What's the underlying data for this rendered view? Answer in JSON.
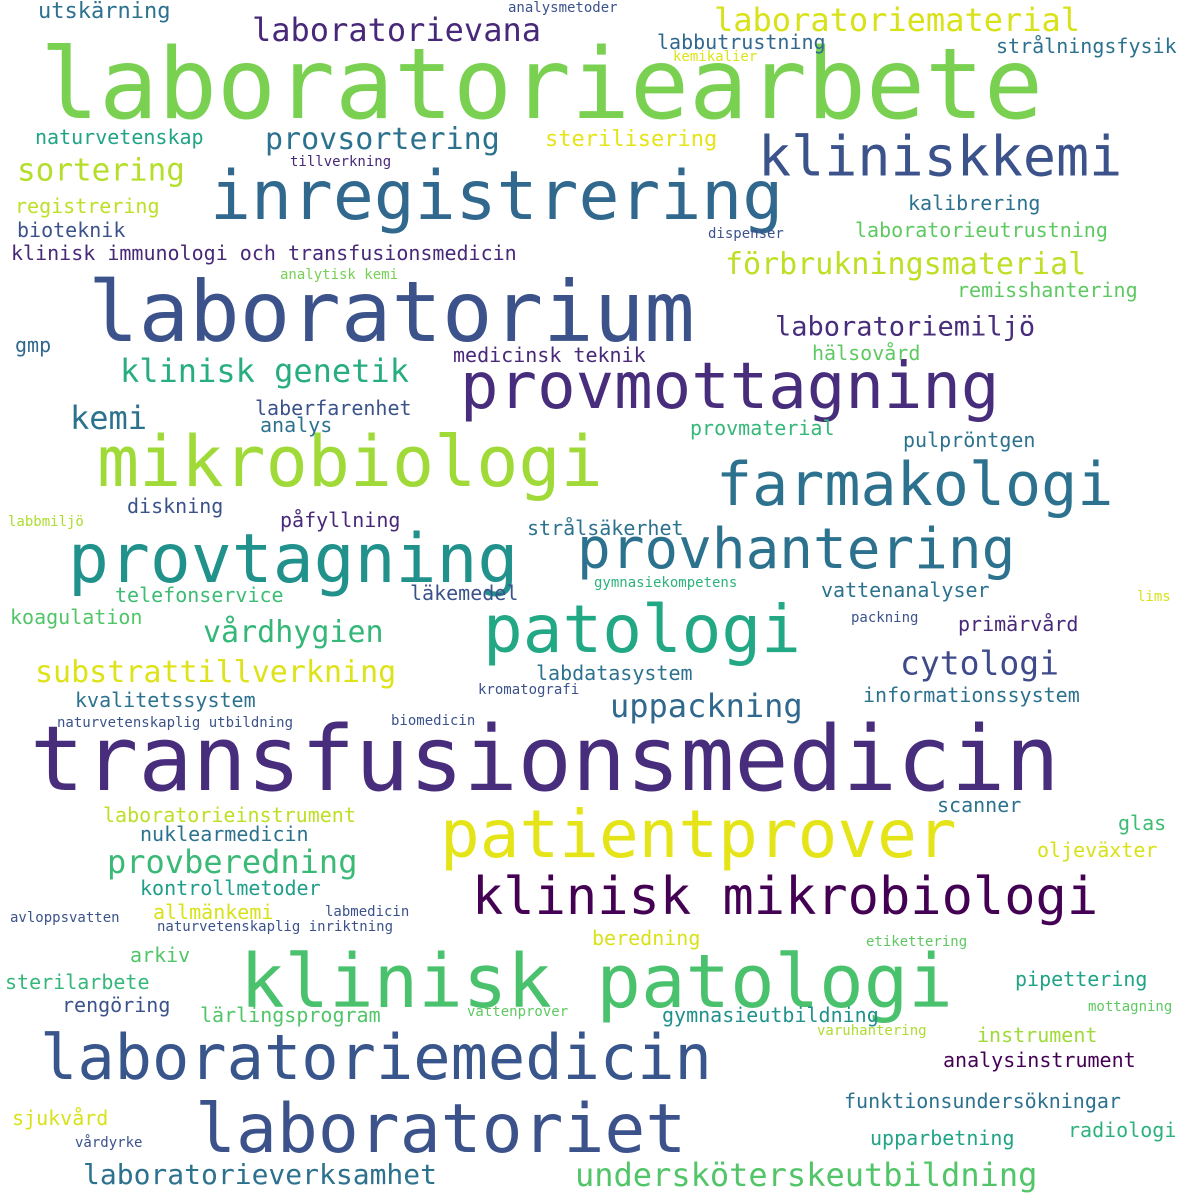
{
  "palette": {
    "purple": "#440154",
    "indigo": "#472d7b",
    "blue": "#3b528b",
    "steel": "#2c728e",
    "teal": "#21918c",
    "green": "#28ae80",
    "lightgreen": "#5ec962",
    "lime": "#addc30",
    "yellow": "#fde725"
  },
  "words": [
    {
      "text": "laboratoriearbete",
      "color": "#7ad151",
      "size": 98
    },
    {
      "text": "inregistrering",
      "color": "#31688e",
      "size": 68
    },
    {
      "text": "kliniskkemi",
      "color": "#3b528b",
      "size": 55
    },
    {
      "text": "laboratorium",
      "color": "#3b528b",
      "size": 84
    },
    {
      "text": "provmottagning",
      "color": "#472d7b",
      "size": 64
    },
    {
      "text": "mikrobiologi",
      "color": "#a0da39",
      "size": 70
    },
    {
      "text": "farmakologi",
      "color": "#2c728e",
      "size": 60
    },
    {
      "text": "provtagning",
      "color": "#21918c",
      "size": 68
    },
    {
      "text": "provhantering",
      "color": "#2c728e",
      "size": 56
    },
    {
      "text": "patologi",
      "color": "#22a884",
      "size": 66
    },
    {
      "text": "transfusionsmedicin",
      "color": "#472d7b",
      "size": 90
    },
    {
      "text": "patientprover",
      "color": "#e5e419",
      "size": 66
    },
    {
      "text": "klinisk mikrobiologi",
      "color": "#440154",
      "size": 52
    },
    {
      "text": "klinisk patologi",
      "color": "#4ac16d",
      "size": 74
    },
    {
      "text": "laboratoriemedicin",
      "color": "#39568c",
      "size": 62
    },
    {
      "text": "laboratoriet",
      "color": "#3b528b",
      "size": 68
    },
    {
      "text": "laboratorievana",
      "color": "#482878",
      "size": 32
    },
    {
      "text": "laboratoriematerial",
      "color": "#d8e219",
      "size": 32
    },
    {
      "text": "provsortering",
      "color": "#2c728e",
      "size": 30
    },
    {
      "text": "sortering",
      "color": "#b5de2b",
      "size": 31
    },
    {
      "text": "förbrukningsmaterial",
      "color": "#bddf26",
      "size": 30
    },
    {
      "text": "laboratoriemiljö",
      "color": "#472d7b",
      "size": 27
    },
    {
      "text": "klinisk genetik",
      "color": "#27ad81",
      "size": 32
    },
    {
      "text": "kemi",
      "color": "#2c728e",
      "size": 32
    },
    {
      "text": "cytologi",
      "color": "#3e4a89",
      "size": 33
    },
    {
      "text": "substrattillverkning",
      "color": "#dde318",
      "size": 30
    },
    {
      "text": "uppackning",
      "color": "#31688e",
      "size": 32
    },
    {
      "text": "vårdhygien",
      "color": "#35b779",
      "size": 30
    },
    {
      "text": "provberedning",
      "color": "#3aba76",
      "size": 32
    },
    {
      "text": "undersköterskeutbildning",
      "color": "#52c569",
      "size": 32
    },
    {
      "text": "laboratorieverksamhet",
      "color": "#2c728e",
      "size": 28
    },
    {
      "text": "utskärning",
      "color": "#2c728e",
      "size": 22
    },
    {
      "text": "analysmetoder",
      "color": "#3b528b",
      "size": 14
    },
    {
      "text": "labbutrustning",
      "color": "#31688e",
      "size": 20
    },
    {
      "text": "strålningsfysik",
      "color": "#2c728e",
      "size": 20
    },
    {
      "text": "kemikalier",
      "color": "#dde318",
      "size": 14
    },
    {
      "text": "naturvetenskap",
      "color": "#20a386",
      "size": 20
    },
    {
      "text": "sterilisering",
      "color": "#e5e419",
      "size": 22
    },
    {
      "text": "tillverkning",
      "color": "#482878",
      "size": 14
    },
    {
      "text": "registrering",
      "color": "#bddf26",
      "size": 20
    },
    {
      "text": "bioteknik",
      "color": "#3b528b",
      "size": 20
    },
    {
      "text": "kalibrering",
      "color": "#2c728e",
      "size": 20
    },
    {
      "text": "dispenser",
      "color": "#3b528b",
      "size": 14
    },
    {
      "text": "laboratorieutrustning",
      "color": "#5ec962",
      "size": 20
    },
    {
      "text": "klinisk immunologi och transfusionsmedicin",
      "color": "#482878",
      "size": 20
    },
    {
      "text": "analytisk kemi",
      "color": "#75d054",
      "size": 14
    },
    {
      "text": "remisshantering",
      "color": "#5ec962",
      "size": 20
    },
    {
      "text": "gmp",
      "color": "#31688e",
      "size": 20
    },
    {
      "text": "medicinsk teknik",
      "color": "#482878",
      "size": 20
    },
    {
      "text": "hälsovård",
      "color": "#5ec962",
      "size": 20
    },
    {
      "text": "laberfarenhet",
      "color": "#3b528b",
      "size": 20
    },
    {
      "text": "analys",
      "color": "#2c728e",
      "size": 20
    },
    {
      "text": "provmaterial",
      "color": "#35b779",
      "size": 20
    },
    {
      "text": "pulpröntgen",
      "color": "#2c728e",
      "size": 20
    },
    {
      "text": "diskning",
      "color": "#3b528b",
      "size": 20
    },
    {
      "text": "påfyllning",
      "color": "#482878",
      "size": 20
    },
    {
      "text": "labbmiljö",
      "color": "#addc30",
      "size": 14
    },
    {
      "text": "strålsäkerhet",
      "color": "#2c728e",
      "size": 20
    },
    {
      "text": "gymnasiekompetens",
      "color": "#2db27d",
      "size": 14
    },
    {
      "text": "telefonservice",
      "color": "#3dbc74",
      "size": 20
    },
    {
      "text": "läkemedel",
      "color": "#3b528b",
      "size": 20
    },
    {
      "text": "vattenanalyser",
      "color": "#2c728e",
      "size": 20
    },
    {
      "text": "lims",
      "color": "#d8e219",
      "size": 14
    },
    {
      "text": "koagulation",
      "color": "#52c569",
      "size": 20
    },
    {
      "text": "packning",
      "color": "#3b528b",
      "size": 14
    },
    {
      "text": "primärvård",
      "color": "#482878",
      "size": 20
    },
    {
      "text": "labdatasystem",
      "color": "#2c728e",
      "size": 20
    },
    {
      "text": "kromatografi",
      "color": "#3b528b",
      "size": 14
    },
    {
      "text": "kvalitetssystem",
      "color": "#2c728e",
      "size": 20
    },
    {
      "text": "informationssystem",
      "color": "#2c728e",
      "size": 20
    },
    {
      "text": "naturvetenskaplig utbildning",
      "color": "#3b528b",
      "size": 14
    },
    {
      "text": "biomedicin",
      "color": "#3b528b",
      "size": 14
    },
    {
      "text": "laboratorieinstrument",
      "color": "#bddf26",
      "size": 20
    },
    {
      "text": "scanner",
      "color": "#2c728e",
      "size": 20
    },
    {
      "text": "nuklearmedicin",
      "color": "#2c728e",
      "size": 20
    },
    {
      "text": "glas",
      "color": "#3dbc74",
      "size": 20
    },
    {
      "text": "oljeväxter",
      "color": "#d8e219",
      "size": 20
    },
    {
      "text": "kontrollmetoder",
      "color": "#1f9e89",
      "size": 20
    },
    {
      "text": "allmänkemi",
      "color": "#d8e219",
      "size": 20
    },
    {
      "text": "labmedicin",
      "color": "#3b528b",
      "size": 14
    },
    {
      "text": "avloppsvatten",
      "color": "#3b528b",
      "size": 14
    },
    {
      "text": "naturvetenskaplig inriktning",
      "color": "#3b528b",
      "size": 14
    },
    {
      "text": "arkiv",
      "color": "#52c569",
      "size": 20
    },
    {
      "text": "beredning",
      "color": "#d8e219",
      "size": 20
    },
    {
      "text": "etikettering",
      "color": "#5ec962",
      "size": 14
    },
    {
      "text": "sterilarbete",
      "color": "#35b779",
      "size": 20
    },
    {
      "text": "pipettering",
      "color": "#20a386",
      "size": 20
    },
    {
      "text": "rengöring",
      "color": "#3b528b",
      "size": 20
    },
    {
      "text": "lärlingsprogram",
      "color": "#52c569",
      "size": 20
    },
    {
      "text": "vattenprover",
      "color": "#5ec962",
      "size": 14
    },
    {
      "text": "gymnasieutbildning",
      "color": "#21918c",
      "size": 20
    },
    {
      "text": "mottagning",
      "color": "#5ec962",
      "size": 14
    },
    {
      "text": "varuhantering",
      "color": "#addc30",
      "size": 14
    },
    {
      "text": "instrument",
      "color": "#a0da39",
      "size": 20
    },
    {
      "text": "analysinstrument",
      "color": "#440154",
      "size": 20
    },
    {
      "text": "funktionsundersökningar",
      "color": "#2c728e",
      "size": 20
    },
    {
      "text": "sjukvård",
      "color": "#d8e219",
      "size": 20
    },
    {
      "text": "radiologi",
      "color": "#2db27d",
      "size": 20
    },
    {
      "text": "vårdyrke",
      "color": "#3b528b",
      "size": 14
    },
    {
      "text": "upparbetning",
      "color": "#20a386",
      "size": 20
    }
  ]
}
